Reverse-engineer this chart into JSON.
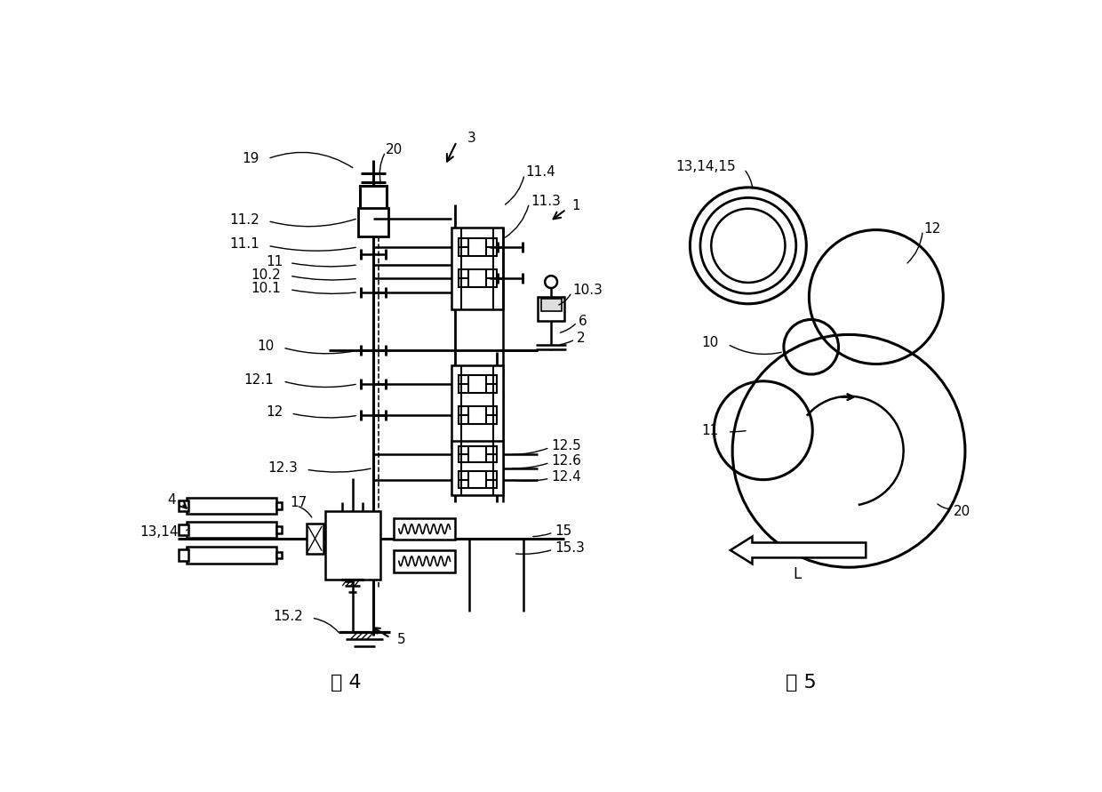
{
  "bg_color": "#ffffff",
  "line_color": "#000000",
  "lw": 1.8,
  "fig4_caption": "图 4",
  "fig5_caption": "图 5",
  "label_fs": 11,
  "caption_fs": 16
}
